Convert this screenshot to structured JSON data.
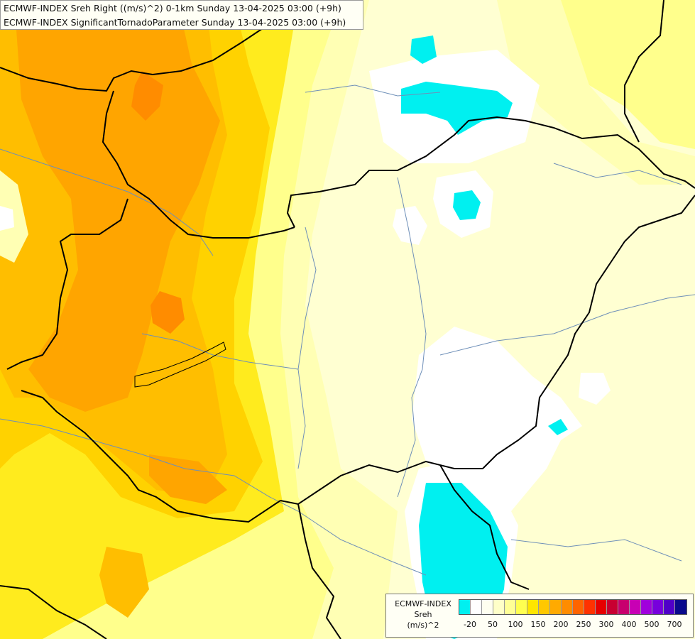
{
  "header": {
    "line1": "ECMWF-INDEX Sreh Right ((m/s)^2) 0-1km Sunday 13-04-2025 03:00 (+9h)",
    "line2": "ECMWF-INDEX SignificantTornadoParameter Sunday 13-04-2025 03:00 (+9h)"
  },
  "legend": {
    "source": "ECMWF-INDEX",
    "variable": "Sreh",
    "unit": "(m/s)^2",
    "colors": [
      "#00f0f0",
      "#ffffff",
      "#fffff0",
      "#ffffc8",
      "#ffff96",
      "#ffff50",
      "#ffe600",
      "#ffc800",
      "#ffaa00",
      "#ff8c00",
      "#ff6400",
      "#ff3200",
      "#e60000",
      "#c80032",
      "#c8006e",
      "#c800b4",
      "#a000dc",
      "#7800dc",
      "#5000c8",
      "#0a0a8c"
    ],
    "tick_labels": [
      "-20",
      "50",
      "100",
      "150",
      "200",
      "250",
      "300",
      "400",
      "500",
      "700"
    ],
    "tick_swatch_index": [
      1,
      3,
      5,
      7,
      9,
      11,
      13,
      15,
      17,
      19
    ]
  },
  "field_colors": {
    "background": "#ffffd2",
    "pale": "#ffffb4",
    "light_yellow": "#ffff8c",
    "yellow": "#ffeb1e",
    "gold": "#ffd200",
    "amber": "#ffbe00",
    "orange": "#ffa500",
    "deep_orange": "#ff8c00",
    "white": "#ffffff",
    "cyan": "#00f0f0",
    "border": "#000000",
    "river": "#6e8fb8"
  }
}
